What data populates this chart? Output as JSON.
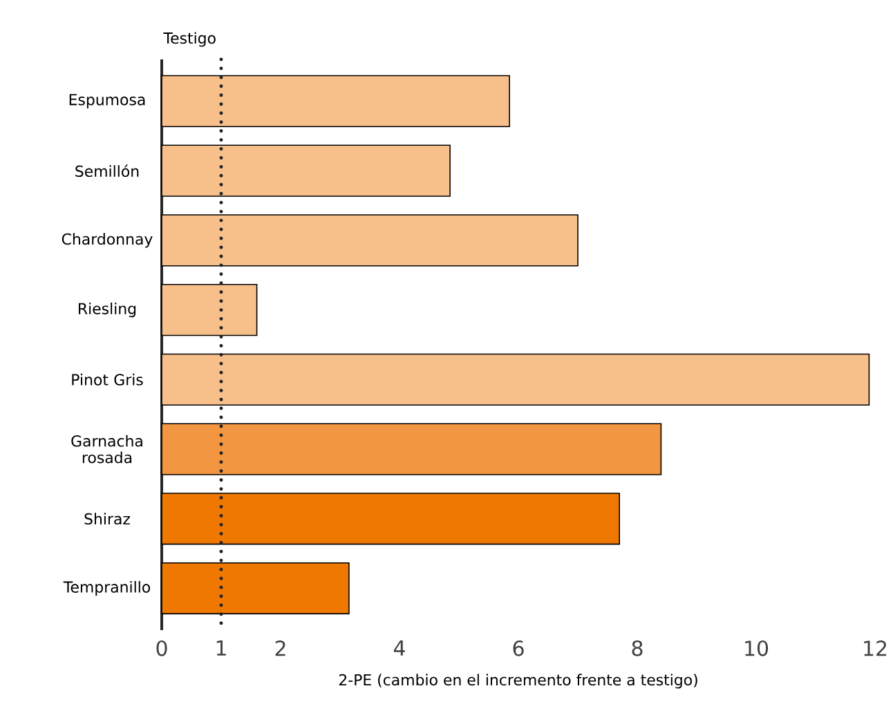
{
  "chart_data": {
    "type": "bar",
    "orientation": "horizontal",
    "xlabel": "2-PE (cambio en el incremento frente a testigo)",
    "categories": [
      "Espumosa",
      "Semillón",
      "Chardonnay",
      "Riesling",
      "Pinot Gris",
      "Garnacha rosada",
      "Shiraz",
      "Tempranillo"
    ],
    "values": [
      5.85,
      4.85,
      7.0,
      1.6,
      11.9,
      8.4,
      7.7,
      3.15
    ],
    "colors": [
      "#f7bf8a",
      "#f7bf8a",
      "#f7bf8a",
      "#f7bf8a",
      "#f7bf8a",
      "#f29642",
      "#ee7800",
      "#ee7800"
    ],
    "xlim": [
      0,
      12
    ],
    "xticks": [
      0,
      1,
      2,
      4,
      6,
      8,
      10,
      12
    ],
    "ref_lines": [
      {
        "axis": "x",
        "value": 1,
        "label": "Testigo",
        "line_style": "dotted",
        "color": "#222222"
      }
    ],
    "grid": false
  }
}
